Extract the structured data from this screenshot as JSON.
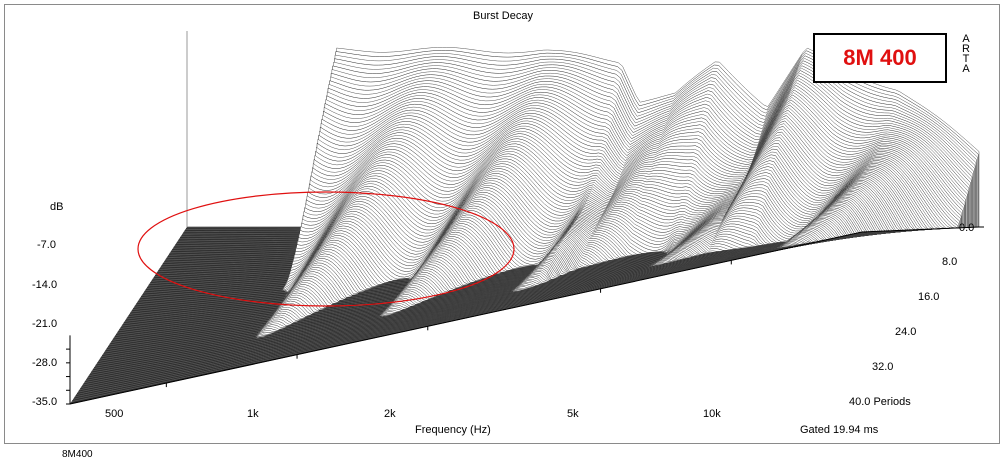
{
  "chart_data": {
    "type": "waterfall",
    "title": "Burst Decay",
    "xlabel": "Frequency (Hz)",
    "ylabel": "dB",
    "zlabel": "Periods",
    "x_scale": "log",
    "x_ticks": [
      "500",
      "1k",
      "2k",
      "5k",
      "10k"
    ],
    "x_tick_values": [
      500,
      1000,
      2000,
      5000,
      10000
    ],
    "xlim": [
      300,
      20000
    ],
    "ylim": [
      -35.0,
      0.0
    ],
    "y_ticks": [
      "-7.0",
      "-14.0",
      "-21.0",
      "-28.0",
      "-35.0"
    ],
    "z_ticks": [
      "0.0",
      "8.0",
      "16.0",
      "24.0",
      "32.0",
      "40.0 Periods"
    ],
    "zlim": [
      0,
      40
    ],
    "gated_label": "Gated 19.94 ms",
    "series": [
      {
        "values": [
          {
            "f": 700,
            "db": -2
          },
          {
            "f": 1200,
            "db": -2
          },
          {
            "f": 2000,
            "db": -2.2
          },
          {
            "f": 3000,
            "db": -4
          },
          {
            "f": 3300,
            "db": -11
          },
          {
            "f": 4000,
            "db": -10
          },
          {
            "f": 5000,
            "db": -4
          },
          {
            "f": 6500,
            "db": -12
          },
          {
            "f": 8000,
            "db": -2
          },
          {
            "f": 10000,
            "db": -6
          },
          {
            "f": 13000,
            "db": -9
          },
          {
            "f": 20000,
            "db": -20
          }
        ]
      }
    ]
  },
  "header": {
    "arta_letters": [
      "A",
      "R",
      "T",
      "A"
    ]
  },
  "badge": {
    "text": "8M 400",
    "color": "#e01010"
  },
  "footer": {
    "caption": "8M400"
  },
  "annotation": {
    "shape": "ellipse",
    "color": "#e01010"
  }
}
